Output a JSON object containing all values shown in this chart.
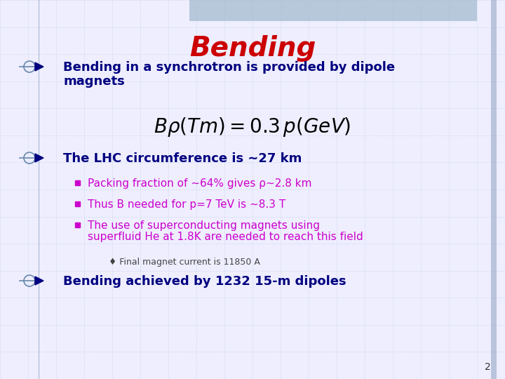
{
  "title": "Bending",
  "title_color": "#CC0000",
  "title_fontsize": 28,
  "bg_color": "#EEEEFF",
  "grid_color": "#BBCCDD",
  "bullet1_line1": "Bending in a synchrotron is provided by dipole",
  "bullet1_line2": "magnets",
  "bullet_color": "#000080",
  "formula": "$B\\rho(Tm) = 0.3\\, p(GeV)$",
  "formula_color": "#000000",
  "bullet2_text": "The LHC circumference is ~27 km",
  "sub1_text": "Packing fraction of ~64% gives ρ~2.8 km",
  "sub2_text": "Thus B needed for p=7 TeV is ~8.3 T",
  "sub3_line1": "The use of superconducting magnets using",
  "sub3_line2": "superfluid He at 1.8K are needed to reach this field",
  "sub_color": "#CC00CC",
  "sub4_text": "♦ Final magnet current is 11850 A",
  "sub4_color": "#444444",
  "bullet3_text": "Bending achieved by 1232 15-m dipoles",
  "arrow_color": "#6688AA",
  "right_bar_color": "#8899BB",
  "header_bar_color": "#A0B8CC",
  "page_num": "2"
}
